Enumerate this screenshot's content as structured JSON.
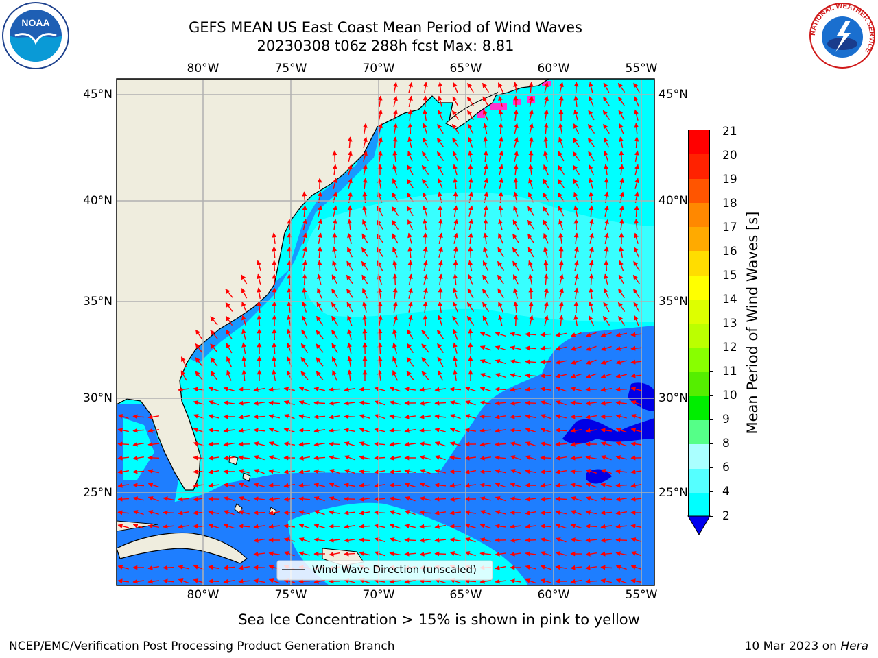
{
  "header": {
    "title_line1": "GEFS MEAN US East Coast Mean Period of Wind Waves",
    "title_line2": "20230308 t06z 288h fcst   Max: 8.81"
  },
  "logos": {
    "noaa_text": "NOAA",
    "nws_ring_text": "NATIONAL WEATHER SERVICE"
  },
  "map": {
    "lon_labels": [
      "80°W",
      "75°W",
      "70°W",
      "65°W",
      "60°W",
      "55°W"
    ],
    "lat_labels": [
      "45°N",
      "40°N",
      "35°N",
      "30°N",
      "25°N"
    ],
    "legend_label": "Wind Wave Direction (unscaled)",
    "colors": {
      "land": "#efedde",
      "ocean_main": "#00ffff",
      "ocean_light": "#66ffff",
      "ocean_deep": "#1e7eff",
      "ocean_darkest": "#0000e6",
      "sea_ice": "#ff33cc",
      "arrow": "#ff0000",
      "grid": "#b0b0b0"
    }
  },
  "colorbar": {
    "label": "Mean Period of Wind Waves [s]",
    "ticks": [
      "21",
      "20",
      "19",
      "18",
      "17",
      "16",
      "15",
      "14",
      "13",
      "12",
      "11",
      "10",
      "9",
      "8",
      "6",
      "4",
      "2"
    ],
    "colors": [
      "#ff0000",
      "#ff2200",
      "#ff5500",
      "#ff8800",
      "#ffaa00",
      "#ffdd00",
      "#ffff00",
      "#ddff00",
      "#bbff00",
      "#88ff00",
      "#55ee00",
      "#00ee00",
      "#55ff88",
      "#aaffff",
      "#55ffff",
      "#00ffff",
      "#1e7eff"
    ],
    "under_color": "#0000ee"
  },
  "footer": {
    "ice_note": "Sea Ice Concentration > 15% is shown in pink to yellow",
    "producer": "NCEP/EMC/Verification Post Processing Product Generation Branch",
    "date_text": "10 Mar 2023 on ",
    "host": "Hera"
  }
}
